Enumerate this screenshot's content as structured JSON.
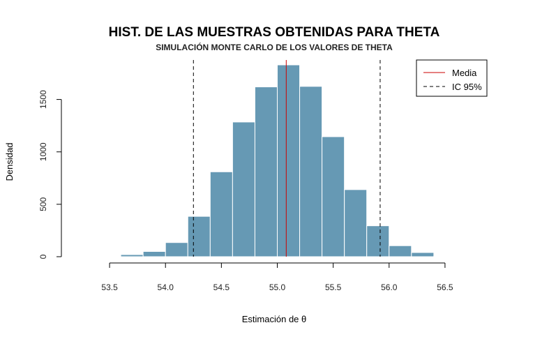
{
  "chart_data": {
    "type": "bar",
    "title": "HIST. DE LAS MUESTRAS OBTENIDAS PARA THETA",
    "subtitle": "SIMULACIÓN MONTE CARLO DE LOS VALORES DE THETA",
    "xlabel": "Estimación de θ",
    "ylabel": "Densidad",
    "xlim": [
      53.2,
      56.8
    ],
    "ylim": [
      0,
      1850
    ],
    "x_ticks": [
      "53.5",
      "54.0",
      "54.5",
      "55.0",
      "55.5",
      "56.0",
      "56.5"
    ],
    "x_tick_values": [
      53.5,
      54.0,
      54.5,
      55.0,
      55.5,
      56.0,
      56.5
    ],
    "y_ticks": [
      "0",
      "500",
      "1000",
      "1500"
    ],
    "y_tick_values": [
      0,
      500,
      1000,
      1500
    ],
    "bins": [
      {
        "x0": 53.2,
        "x1": 53.4,
        "value": 0
      },
      {
        "x0": 53.4,
        "x1": 53.6,
        "value": 2
      },
      {
        "x0": 53.6,
        "x1": 53.8,
        "value": 20
      },
      {
        "x0": 53.8,
        "x1": 54.0,
        "value": 50
      },
      {
        "x0": 54.0,
        "x1": 54.2,
        "value": 135
      },
      {
        "x0": 54.2,
        "x1": 54.4,
        "value": 385
      },
      {
        "x0": 54.4,
        "x1": 54.6,
        "value": 810
      },
      {
        "x0": 54.6,
        "x1": 54.8,
        "value": 1285
      },
      {
        "x0": 54.8,
        "x1": 55.0,
        "value": 1620
      },
      {
        "x0": 55.0,
        "x1": 55.2,
        "value": 1830
      },
      {
        "x0": 55.2,
        "x1": 55.4,
        "value": 1625
      },
      {
        "x0": 55.4,
        "x1": 55.6,
        "value": 1145
      },
      {
        "x0": 55.6,
        "x1": 55.8,
        "value": 640
      },
      {
        "x0": 55.8,
        "x1": 56.0,
        "value": 295
      },
      {
        "x0": 56.0,
        "x1": 56.2,
        "value": 105
      },
      {
        "x0": 56.2,
        "x1": 56.4,
        "value": 40
      },
      {
        "x0": 56.4,
        "x1": 56.6,
        "value": 5
      },
      {
        "x0": 56.6,
        "x1": 56.8,
        "value": 1
      }
    ],
    "mean": 55.08,
    "ci95": [
      54.25,
      55.92
    ],
    "legend": {
      "position": "top-right",
      "items": [
        {
          "label": "Media",
          "style": "solid",
          "color": "#cc0000"
        },
        {
          "label": "IC 95%",
          "style": "dashed",
          "color": "#000000"
        }
      ]
    },
    "bar_color": "#6699b4",
    "bar_border": "#ffffff",
    "grid": false
  }
}
